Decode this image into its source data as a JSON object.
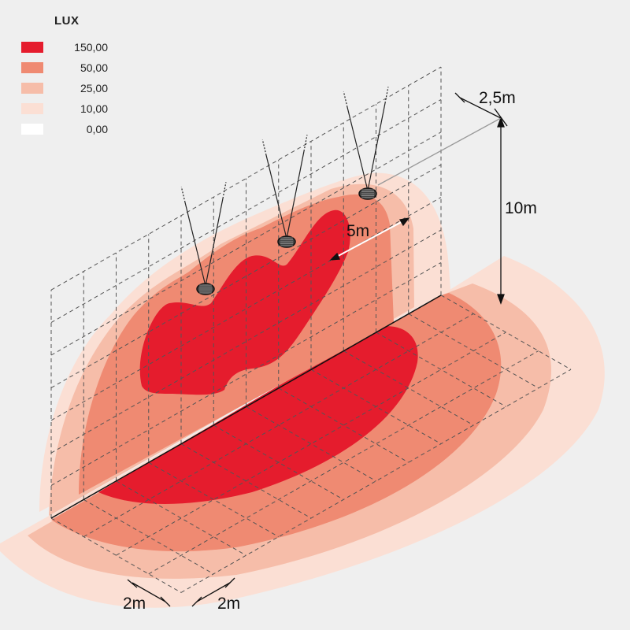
{
  "legend": {
    "title": "LUX",
    "items": [
      {
        "label": "150,00",
        "color": "#e51c2d"
      },
      {
        "label": "50,00",
        "color": "#ef8a72"
      },
      {
        "label": "25,00",
        "color": "#f6bda9"
      },
      {
        "label": "10,00",
        "color": "#fbdfd4"
      },
      {
        "label": "0,00",
        "color": "#ffffff"
      }
    ]
  },
  "dimensions": {
    "spacing_top": "2,5m",
    "height": "10m",
    "spacing_lamps": "5m",
    "grid_left": "2m",
    "grid_right": "2m"
  }
}
